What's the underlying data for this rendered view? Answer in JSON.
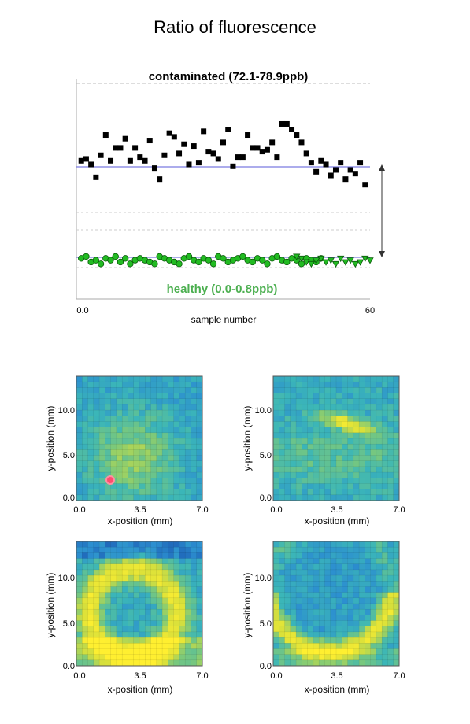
{
  "title": "Ratio of fluorescence",
  "chart_data": [
    {
      "type": "scatter",
      "annotations": {
        "contaminated": "contaminated (72.1-78.9ppb)",
        "healthy": "healthy (0.0-0.8ppb)"
      },
      "xlabel": "sample number",
      "xlim": [
        0,
        60
      ],
      "x_tick_labels": [
        "0.0",
        "60"
      ],
      "ylabel": "",
      "grid": false,
      "colors": {
        "contaminated": "#000000",
        "healthy": "#22bb22",
        "reference_line": "#7b7be0",
        "healthy_label": "#4caf50"
      },
      "series": [
        {
          "marker": "square",
          "x": [
            1,
            2,
            3,
            4,
            5,
            6,
            7,
            8,
            9,
            10,
            11,
            12,
            13,
            14,
            15,
            16,
            17,
            18,
            19,
            20,
            21,
            22,
            23,
            24,
            25,
            26,
            27,
            28,
            29,
            30,
            31,
            32,
            33,
            34,
            35,
            36,
            37,
            38,
            39,
            40,
            41,
            42,
            43,
            44,
            45,
            46,
            47,
            48,
            49,
            50,
            51,
            52,
            53,
            54,
            55,
            56,
            57,
            58,
            59
          ],
          "y": [
            0.58,
            0.59,
            0.56,
            0.49,
            0.61,
            0.72,
            0.58,
            0.65,
            0.65,
            0.7,
            0.58,
            0.65,
            0.6,
            0.58,
            0.69,
            0.54,
            0.48,
            0.61,
            0.73,
            0.71,
            0.62,
            0.67,
            0.56,
            0.66,
            0.57,
            0.74,
            0.63,
            0.62,
            0.59,
            0.68,
            0.75,
            0.55,
            0.6,
            0.6,
            0.72,
            0.65,
            0.65,
            0.63,
            0.64,
            0.68,
            0.6,
            0.78,
            0.78,
            0.75,
            0.72,
            0.68,
            0.62,
            0.57,
            0.52,
            0.58,
            0.56,
            0.5,
            0.53,
            0.57,
            0.48,
            0.53,
            0.51,
            0.57,
            0.45
          ]
        },
        {
          "marker": "circle",
          "x": [
            1,
            2,
            3,
            4,
            5,
            6,
            7,
            8,
            9,
            10,
            11,
            12,
            13,
            14,
            15,
            16,
            17,
            18,
            19,
            20,
            21,
            22,
            23,
            24,
            25,
            26,
            27,
            28,
            29,
            30,
            31,
            32,
            33,
            34,
            35,
            36,
            37,
            38,
            39,
            40,
            41,
            42,
            43,
            44,
            45,
            46,
            47,
            48,
            49,
            50
          ],
          "y": [
            0.05,
            0.06,
            0.03,
            0.04,
            0.02,
            0.05,
            0.04,
            0.06,
            0.03,
            0.05,
            0.02,
            0.04,
            0.05,
            0.04,
            0.03,
            0.02,
            0.06,
            0.05,
            0.04,
            0.03,
            0.02,
            0.05,
            0.06,
            0.04,
            0.03,
            0.05,
            0.04,
            0.02,
            0.06,
            0.05,
            0.03,
            0.04,
            0.05,
            0.06,
            0.04,
            0.03,
            0.05,
            0.04,
            0.02,
            0.05,
            0.06,
            0.04,
            0.03,
            0.05,
            0.04,
            0.02,
            0.05,
            0.04,
            0.03,
            0.05
          ]
        },
        {
          "marker": "triangle",
          "x": [
            45,
            46,
            47,
            48,
            49,
            50,
            51,
            52,
            53,
            54,
            55,
            56,
            57,
            58,
            59,
            60
          ],
          "y": [
            0.06,
            0.05,
            0.03,
            0.02,
            0.04,
            0.05,
            0.03,
            0.04,
            0.02,
            0.05,
            0.03,
            0.04,
            0.02,
            0.03,
            0.05,
            0.04
          ]
        }
      ]
    },
    {
      "type": "heatmap",
      "xlabel": "x-position (mm)",
      "ylabel": "y-position (mm)",
      "x_tick_labels": [
        "0.0",
        "3.5",
        "7.0"
      ],
      "y_tick_labels": [
        "0.0",
        "5.0",
        "10.0"
      ],
      "xlim": [
        0,
        7.0
      ],
      "ylim": [
        0,
        13.5
      ],
      "grid_size": [
        22,
        22
      ],
      "pattern": "diffuse green region lower-left, marked spot",
      "colorscale": [
        "#1a56b0",
        "#2c8fd0",
        "#3bb6b8",
        "#7cc97a",
        "#d9e03a",
        "#ffef30"
      ]
    },
    {
      "type": "heatmap",
      "xlabel": "x-position (mm)",
      "ylabel": "y-position (mm)",
      "x_tick_labels": [
        "0.0",
        "3.5",
        "7.0"
      ],
      "y_tick_labels": [
        "0.0",
        "5.0",
        "10.0"
      ],
      "xlim": [
        0,
        7.0
      ],
      "ylim": [
        0,
        13.5
      ],
      "grid_size": [
        22,
        22
      ],
      "pattern": "yellow band upper middle",
      "colorscale": [
        "#1a56b0",
        "#2c8fd0",
        "#3bb6b8",
        "#7cc97a",
        "#d9e03a",
        "#ffef30"
      ]
    },
    {
      "type": "heatmap",
      "xlabel": "x-position (mm)",
      "ylabel": "y-position (mm)",
      "x_tick_labels": [
        "0.0",
        "3.5",
        "7.0"
      ],
      "y_tick_labels": [
        "0.0",
        "5.0",
        "10.0"
      ],
      "xlim": [
        0,
        7.0
      ],
      "ylim": [
        0,
        13.5
      ],
      "grid_size": [
        22,
        22
      ],
      "pattern": "yellow ring covering most of area",
      "colorscale": [
        "#1a56b0",
        "#2c8fd0",
        "#3bb6b8",
        "#7cc97a",
        "#d9e03a",
        "#ffef30"
      ]
    },
    {
      "type": "heatmap",
      "xlabel": "x-position (mm)",
      "ylabel": "y-position (mm)",
      "x_tick_labels": [
        "0.0",
        "3.5",
        "7.0"
      ],
      "y_tick_labels": [
        "0.0",
        "5.0",
        "10.0"
      ],
      "xlim": [
        0,
        7.0
      ],
      "ylim": [
        0,
        13.5
      ],
      "grid_size": [
        22,
        22
      ],
      "pattern": "yellow arc along bottom",
      "colorscale": [
        "#1a56b0",
        "#2c8fd0",
        "#3bb6b8",
        "#7cc97a",
        "#d9e03a",
        "#ffef30"
      ]
    }
  ]
}
